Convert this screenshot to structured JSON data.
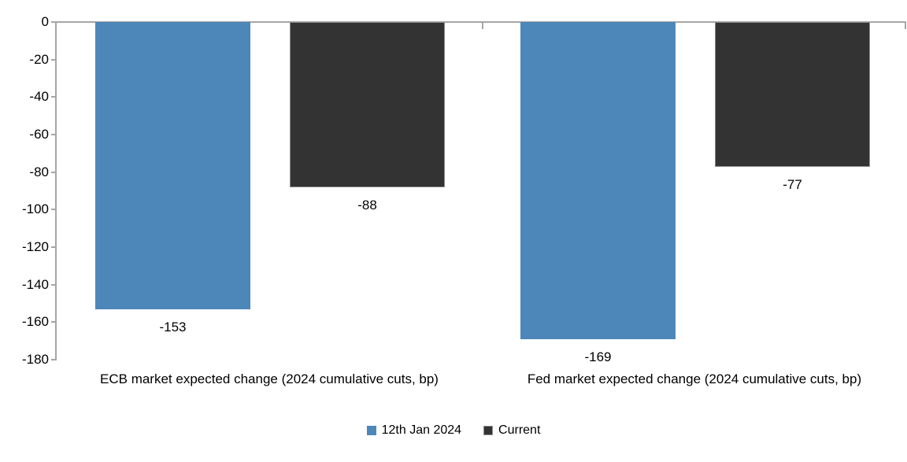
{
  "chart_data": {
    "type": "bar",
    "title": "",
    "categories": [
      "ECB market expected change (2024 cumulative cuts, bp)",
      "Fed market expected change (2024 cumulative cuts, bp)"
    ],
    "series": [
      {
        "name": "12th Jan 2024",
        "color": "#4d87ba",
        "values": [
          -153,
          -169
        ]
      },
      {
        "name": "Current",
        "color": "#333333",
        "values": [
          -88,
          -77
        ]
      }
    ],
    "ylim": [
      -180,
      0
    ],
    "y_ticks": [
      0,
      -20,
      -40,
      -60,
      -80,
      -100,
      -120,
      -140,
      -160,
      -180
    ],
    "grid": false,
    "data_labels": true,
    "legend_position": "bottom"
  },
  "colors": {
    "background": "#ffffff",
    "axis": "#a6a6a6",
    "text": "#000000",
    "series_blue": "#4d87ba",
    "series_dark": "#333333"
  }
}
